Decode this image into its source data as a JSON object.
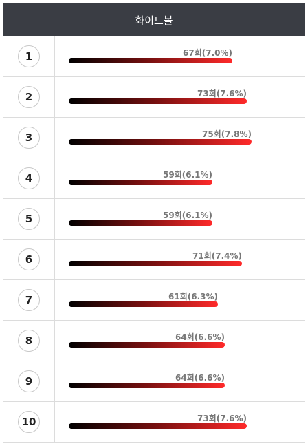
{
  "header": {
    "title": "화이트볼"
  },
  "chart_data": {
    "type": "bar",
    "orientation": "horizontal",
    "title": "화이트볼",
    "categories": [
      "1",
      "2",
      "3",
      "4",
      "5",
      "6",
      "7",
      "8",
      "9",
      "10"
    ],
    "values": [
      67,
      73,
      75,
      59,
      59,
      71,
      61,
      64,
      64,
      73
    ],
    "percents": [
      "7.0%",
      "7.6%",
      "7.8%",
      "6.1%",
      "6.1%",
      "7.4%",
      "6.3%",
      "6.6%",
      "6.6%",
      "7.6%"
    ],
    "labels": [
      "67회(7.0%)",
      "73회(7.6%)",
      "75회(7.8%)",
      "59회(6.1%)",
      "59회(6.1%)",
      "71회(7.4%)",
      "61회(6.3%)",
      "64회(6.6%)",
      "64회(6.6%)",
      "73회(7.6%)"
    ],
    "colors": {
      "bar_start": "#000000",
      "bar_end": "#ff2a2a",
      "header_bg": "#3a3d44"
    }
  }
}
